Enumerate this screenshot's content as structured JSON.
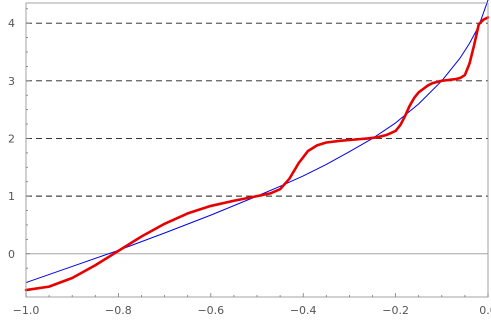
{
  "chart_data": {
    "type": "line",
    "title": "",
    "xlabel": "",
    "ylabel": "",
    "xlim": [
      -1.0,
      0.0
    ],
    "ylim": [
      -0.75,
      4.35
    ],
    "grid": false,
    "frame": true,
    "x_ticks": [
      {
        "value": -1.0,
        "label": "−1.0"
      },
      {
        "value": -0.8,
        "label": "−0.8"
      },
      {
        "value": -0.6,
        "label": "−0.6"
      },
      {
        "value": -0.4,
        "label": "−0.4"
      },
      {
        "value": -0.2,
        "label": "−0.2"
      },
      {
        "value": 0.0,
        "label": "0.0"
      }
    ],
    "y_ticks": [
      {
        "value": 0,
        "label": "0"
      },
      {
        "value": 1,
        "label": "1"
      },
      {
        "value": 2,
        "label": "2"
      },
      {
        "value": 3,
        "label": "3"
      },
      {
        "value": 4,
        "label": "4"
      }
    ],
    "reference_lines": {
      "horizontal_solid": [
        0
      ],
      "horizontal_dashed": [
        1,
        2,
        3,
        4
      ],
      "colors": {
        "solid": "#a6a6a6",
        "dashed": "#1a1a1a"
      }
    },
    "series": [
      {
        "color": "#0000ee",
        "style": "thin",
        "x": [
          -1.0,
          -0.9,
          -0.8,
          -0.7,
          -0.6,
          -0.5,
          -0.45,
          -0.4,
          -0.35,
          -0.3,
          -0.25,
          -0.2,
          -0.15,
          -0.1,
          -0.08,
          -0.06,
          -0.04,
          -0.02,
          0.0
        ],
        "y": [
          -0.5,
          -0.22,
          0.06,
          0.36,
          0.67,
          1.0,
          1.17,
          1.35,
          1.55,
          1.77,
          2.0,
          2.27,
          2.6,
          3.0,
          3.2,
          3.4,
          3.65,
          3.95,
          4.4
        ]
      },
      {
        "color": "#e60000",
        "style": "thick",
        "x": [
          -1.0,
          -0.95,
          -0.9,
          -0.85,
          -0.8,
          -0.75,
          -0.7,
          -0.65,
          -0.6,
          -0.55,
          -0.5,
          -0.47,
          -0.45,
          -0.43,
          -0.41,
          -0.39,
          -0.37,
          -0.35,
          -0.32,
          -0.29,
          -0.26,
          -0.24,
          -0.22,
          -0.2,
          -0.19,
          -0.18,
          -0.17,
          -0.16,
          -0.15,
          -0.14,
          -0.13,
          -0.12,
          -0.11,
          -0.1,
          -0.09,
          -0.08,
          -0.07,
          -0.06,
          -0.05,
          -0.04,
          -0.03,
          -0.02,
          -0.01,
          0.0
        ],
        "y": [
          -0.63,
          -0.57,
          -0.42,
          -0.2,
          0.05,
          0.3,
          0.52,
          0.7,
          0.83,
          0.92,
          1.0,
          1.05,
          1.12,
          1.3,
          1.57,
          1.78,
          1.88,
          1.93,
          1.96,
          1.98,
          2.0,
          2.02,
          2.06,
          2.13,
          2.23,
          2.38,
          2.56,
          2.7,
          2.8,
          2.86,
          2.92,
          2.96,
          2.98,
          3.0,
          3.01,
          3.02,
          3.03,
          3.05,
          3.1,
          3.3,
          3.62,
          3.98,
          4.06,
          4.1
        ]
      }
    ]
  }
}
